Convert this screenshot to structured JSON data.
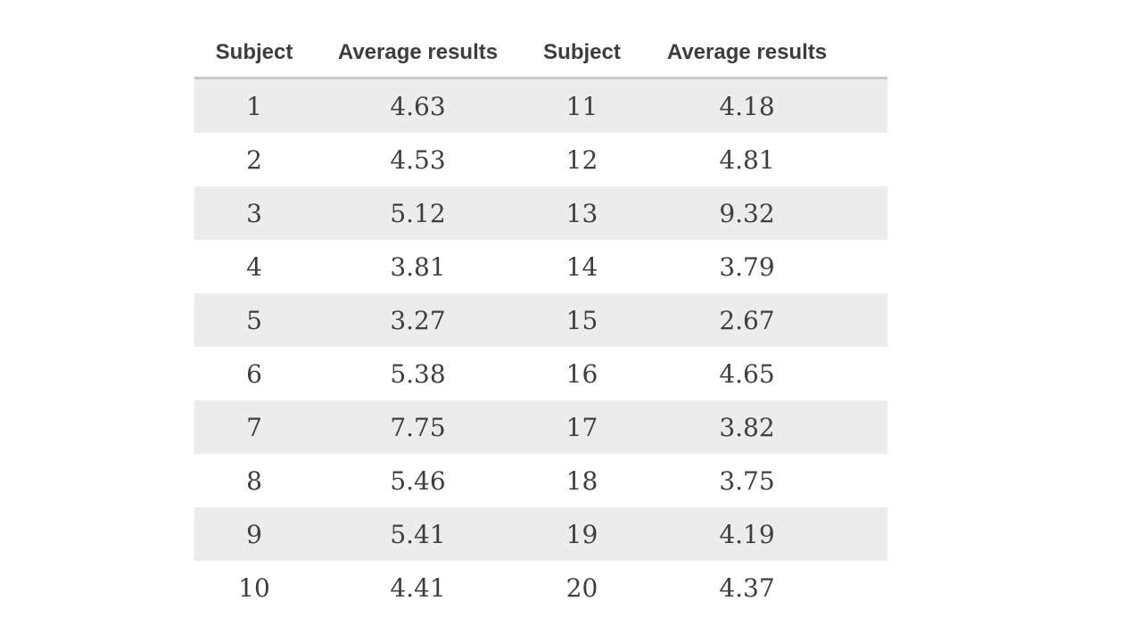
{
  "chart_data": {
    "type": "table",
    "title": "",
    "columns": [
      "Subject",
      "Average results",
      "Subject",
      "Average results"
    ],
    "rows": [
      [
        "1",
        "4.63",
        "11",
        "4.18"
      ],
      [
        "2",
        "4.53",
        "12",
        "4.81"
      ],
      [
        "3",
        "5.12",
        "13",
        "9.32"
      ],
      [
        "4",
        "3.81",
        "14",
        "3.79"
      ],
      [
        "5",
        "3.27",
        "15",
        "2.67"
      ],
      [
        "6",
        "5.38",
        "16",
        "4.65"
      ],
      [
        "7",
        "7.75",
        "17",
        "3.82"
      ],
      [
        "8",
        "5.46",
        "18",
        "3.75"
      ],
      [
        "9",
        "5.41",
        "19",
        "4.19"
      ],
      [
        "10",
        "4.41",
        "20",
        "4.37"
      ]
    ],
    "subjects": [
      1,
      2,
      3,
      4,
      5,
      6,
      7,
      8,
      9,
      10,
      11,
      12,
      13,
      14,
      15,
      16,
      17,
      18,
      19,
      20
    ],
    "average_results": [
      4.63,
      4.53,
      5.12,
      3.81,
      3.27,
      5.38,
      7.75,
      5.46,
      5.41,
      4.41,
      4.18,
      4.81,
      9.32,
      3.79,
      2.67,
      4.65,
      3.82,
      3.75,
      4.19,
      4.37
    ],
    "layout": {
      "stripe_style": "odd rows shaded",
      "header_divider": true
    }
  },
  "colors": {
    "background": "#ffffff",
    "row_stripe": "#ececec",
    "header_border": "#c8c8c8",
    "text": "#3e3e3e",
    "header_text": "#3d3d3d"
  }
}
